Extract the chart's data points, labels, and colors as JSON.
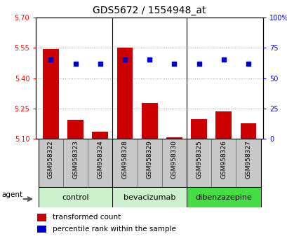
{
  "title": "GDS5672 / 1554948_at",
  "samples": [
    "GSM958322",
    "GSM958323",
    "GSM958324",
    "GSM958328",
    "GSM958329",
    "GSM958330",
    "GSM958325",
    "GSM958326",
    "GSM958327"
  ],
  "transformed_counts": [
    5.545,
    5.193,
    5.135,
    5.552,
    5.278,
    5.108,
    5.198,
    5.237,
    5.178
  ],
  "percentile_ranks": [
    65,
    62,
    62,
    65,
    65,
    62,
    62,
    65,
    62
  ],
  "ylim_left": [
    5.1,
    5.7
  ],
  "ylim_right": [
    0,
    100
  ],
  "yticks_left": [
    5.1,
    5.25,
    5.4,
    5.55,
    5.7
  ],
  "yticks_right": [
    0,
    25,
    50,
    75,
    100
  ],
  "groups": [
    {
      "label": "control",
      "indices": [
        0,
        1,
        2
      ],
      "color": "#ccf0cc"
    },
    {
      "label": "bevacizumab",
      "indices": [
        3,
        4,
        5
      ],
      "color": "#ccf0cc"
    },
    {
      "label": "dibenzazepine",
      "indices": [
        6,
        7,
        8
      ],
      "color": "#44dd44"
    }
  ],
  "bar_color": "#cc0000",
  "dot_color": "#0000cc",
  "bar_baseline": 5.1,
  "grid_color": "#999999",
  "xtick_bg": "#c8c8c8",
  "legend_items": [
    "transformed count",
    "percentile rank within the sample"
  ],
  "title_fontsize": 10,
  "tick_fontsize": 7,
  "xtick_fontsize": 6.5,
  "group_fontsize": 8,
  "legend_fontsize": 7.5
}
